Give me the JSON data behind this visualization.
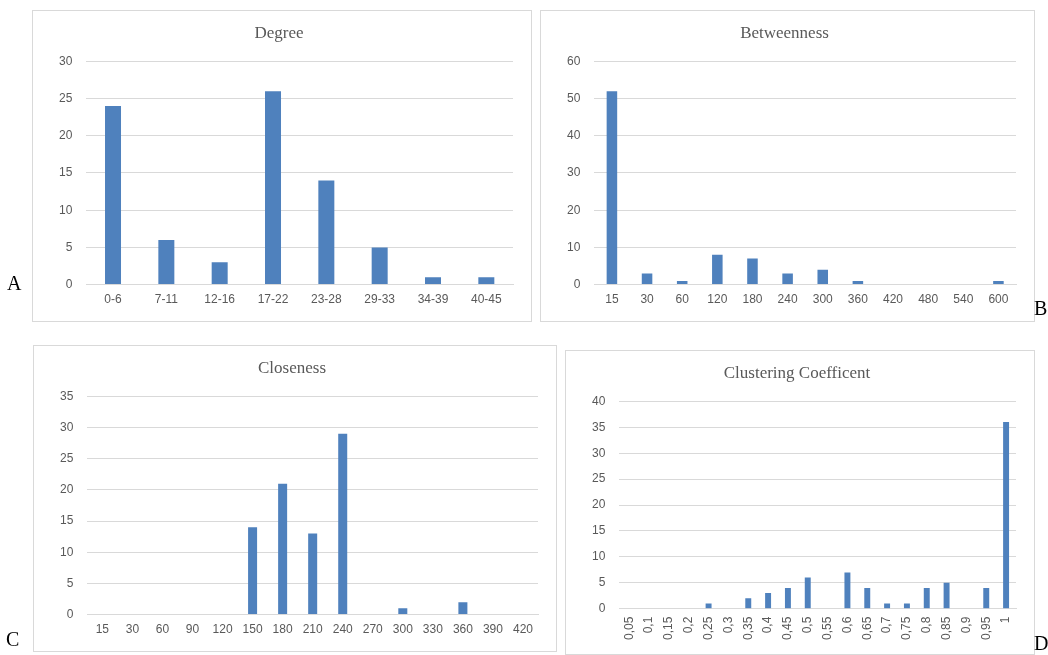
{
  "chart_data": [
    {
      "type": "bar",
      "title": "Degree",
      "categories": [
        "0-6",
        "7-11",
        "12-16",
        "17-22",
        "23-28",
        "29-33",
        "34-39",
        "40-45"
      ],
      "values": [
        24,
        6,
        3,
        26,
        14,
        5,
        1,
        1
      ],
      "color": "#4f81bd",
      "ylim": [
        0,
        30
      ],
      "yticks": [
        0,
        5,
        10,
        15,
        20,
        25,
        30
      ],
      "grid": "y",
      "annotations": [
        "A"
      ]
    },
    {
      "type": "bar",
      "title": "Betweenness",
      "categories": [
        "15",
        "30",
        "60",
        "120",
        "180",
        "240",
        "300",
        "360",
        "420",
        "480",
        "540",
        "600"
      ],
      "values": [
        52,
        3,
        1,
        8,
        7,
        3,
        4,
        1,
        0,
        0,
        0,
        1
      ],
      "color": "#4f81bd",
      "ylim": [
        0,
        60
      ],
      "yticks": [
        0,
        10,
        20,
        30,
        40,
        50,
        60
      ],
      "grid": "y",
      "annotations": [
        "B"
      ]
    },
    {
      "type": "bar",
      "title": "Closeness",
      "categories": [
        "15",
        "30",
        "60",
        "90",
        "120",
        "150",
        "180",
        "210",
        "240",
        "270",
        "300",
        "330",
        "360",
        "390",
        "420"
      ],
      "values": [
        0,
        0,
        0,
        0,
        0,
        14,
        21,
        13,
        29,
        0,
        1,
        0,
        2,
        0,
        0
      ],
      "color": "#4f81bd",
      "ylim": [
        0,
        35
      ],
      "yticks": [
        0,
        5,
        10,
        15,
        20,
        25,
        30,
        35
      ],
      "grid": "y",
      "annotations": [
        "C"
      ]
    },
    {
      "type": "bar",
      "title": "Clustering Coefficent",
      "categories": [
        "0,05",
        "0,1",
        "0,15",
        "0,2",
        "0,25",
        "0,3",
        "0,35",
        "0,4",
        "0,45",
        "0,5",
        "0,55",
        "0,6",
        "0,65",
        "0,7",
        "0,75",
        "0,8",
        "0,85",
        "0,9",
        "0,95",
        "1"
      ],
      "values": [
        0,
        0,
        0,
        0,
        1,
        0,
        2,
        3,
        4,
        6,
        0,
        7,
        4,
        1,
        1,
        4,
        5,
        0,
        4,
        36
      ],
      "color": "#4f81bd",
      "ylim": [
        0,
        40
      ],
      "yticks": [
        0,
        5,
        10,
        15,
        20,
        25,
        30,
        35,
        40
      ],
      "grid": "y",
      "annotations": [
        "D"
      ]
    }
  ]
}
